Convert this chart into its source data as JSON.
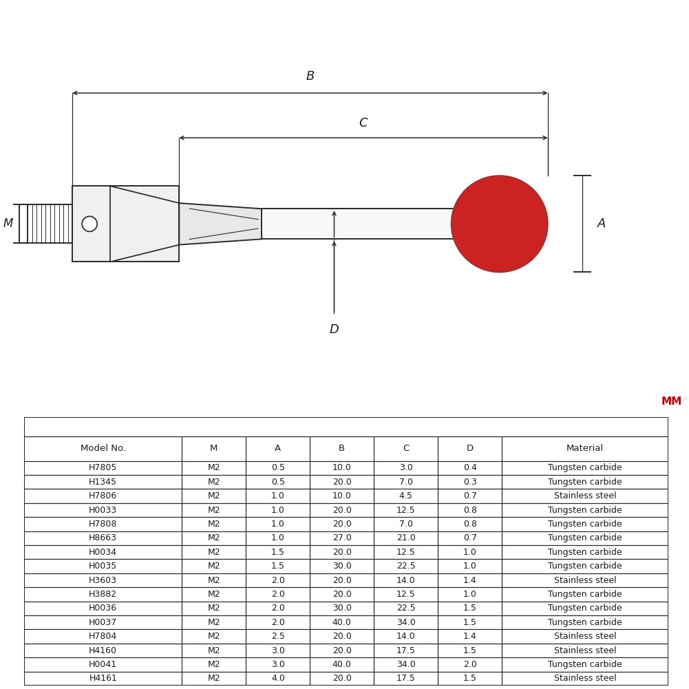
{
  "table_headers": [
    "Model No.",
    "M",
    "A",
    "B",
    "C",
    "D",
    "Material"
  ],
  "table_rows": [
    [
      "H7805",
      "M2",
      "0.5",
      "10.0",
      "3.0",
      "0.4",
      "Tungsten carbide"
    ],
    [
      "H1345",
      "M2",
      "0.5",
      "20.0",
      "7.0",
      "0.3",
      "Tungsten carbide"
    ],
    [
      "H7806",
      "M2",
      "1.0",
      "10.0",
      "4.5",
      "0.7",
      "Stainless steel"
    ],
    [
      "H0033",
      "M2",
      "1.0",
      "20.0",
      "12.5",
      "0.8",
      "Tungsten carbide"
    ],
    [
      "H7808",
      "M2",
      "1.0",
      "20.0",
      "7.0",
      "0.8",
      "Tungsten carbide"
    ],
    [
      "H8663",
      "M2",
      "1.0",
      "27.0",
      "21.0",
      "0.7",
      "Tungsten carbide"
    ],
    [
      "H0034",
      "M2",
      "1.5",
      "20.0",
      "12.5",
      "1.0",
      "Tungsten carbide"
    ],
    [
      "H0035",
      "M2",
      "1.5",
      "30.0",
      "22.5",
      "1.0",
      "Tungsten carbide"
    ],
    [
      "H3603",
      "M2",
      "2.0",
      "20.0",
      "14.0",
      "1.4",
      "Stainless steel"
    ],
    [
      "H3882",
      "M2",
      "2.0",
      "20.0",
      "12.5",
      "1.0",
      "Tungsten carbide"
    ],
    [
      "H0036",
      "M2",
      "2.0",
      "30.0",
      "22.5",
      "1.5",
      "Tungsten carbide"
    ],
    [
      "H0037",
      "M2",
      "2.0",
      "40.0",
      "34.0",
      "1.5",
      "Tungsten carbide"
    ],
    [
      "H7804",
      "M2",
      "2.5",
      "20.0",
      "14.0",
      "1.4",
      "Stainless steel"
    ],
    [
      "H4160",
      "M2",
      "3.0",
      "20.0",
      "17.5",
      "1.5",
      "Stainless steel"
    ],
    [
      "H0041",
      "M2",
      "3.0",
      "40.0",
      "34.0",
      "2.0",
      "Tungsten carbide"
    ],
    [
      "H4161",
      "M2",
      "4.0",
      "20.0",
      "17.5",
      "1.5",
      "Stainless steel"
    ]
  ],
  "mm_label": "MM",
  "mm_color": "#cc0000",
  "bg_color": "#ffffff",
  "line_color": "#2a2a2a",
  "text_color": "#1a1a1a",
  "ball_color": "#cc2222",
  "ball_edge_color": "#993333"
}
